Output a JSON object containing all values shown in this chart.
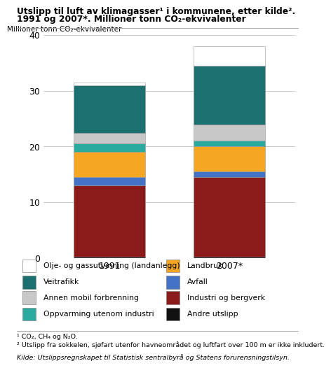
{
  "title_line1": "Utslipp til luft av klimagasser¹ i kommunene, etter kilde².",
  "title_line2": "1991 og 2007*. Millioner tonn CO₂-ekvivalenter",
  "ylabel": "Millioner tonn CO₂-ekvivalenter",
  "categories": [
    "1991",
    "2007*"
  ],
  "ylim": [
    0,
    40
  ],
  "yticks": [
    0,
    10,
    20,
    30,
    40
  ],
  "series": [
    {
      "label": "Andre utslipp",
      "color": "#111111",
      "values": [
        0.3,
        0.3
      ]
    },
    {
      "label": "Industri og bergverk",
      "color": "#8b1a1a",
      "values": [
        12.7,
        14.2
      ]
    },
    {
      "label": "Avfall",
      "color": "#4472c4",
      "values": [
        1.5,
        1.0
      ]
    },
    {
      "label": "Landbruk",
      "color": "#f5a623",
      "values": [
        4.5,
        4.5
      ]
    },
    {
      "label": "Oppvarming utenom industri",
      "color": "#2baba0",
      "values": [
        1.5,
        1.0
      ]
    },
    {
      "label": "Annen mobil forbrenning",
      "color": "#c8c8c8",
      "values": [
        2.0,
        3.0
      ]
    },
    {
      "label": "Veitrafikk",
      "color": "#1d7070",
      "values": [
        8.5,
        10.5
      ]
    },
    {
      "label": "Olje- og gassutvinning (landanlegg)",
      "color": "#ffffff",
      "values": [
        0.5,
        3.5
      ]
    }
  ],
  "footnote1": "¹ CO₂, CH₄ og N₂O.",
  "footnote2": "² Utslipp fra sokkelen, sjøfart utenfor havneområdet og luftfart over 100 m er ikke inkludert.",
  "footnote3": "Kilde: Utslippsregnskapet til Statistisk sentralbyrå og Statens forurensningstilsyn.",
  "bar_edge_color": "#999999",
  "background_color": "#ffffff"
}
